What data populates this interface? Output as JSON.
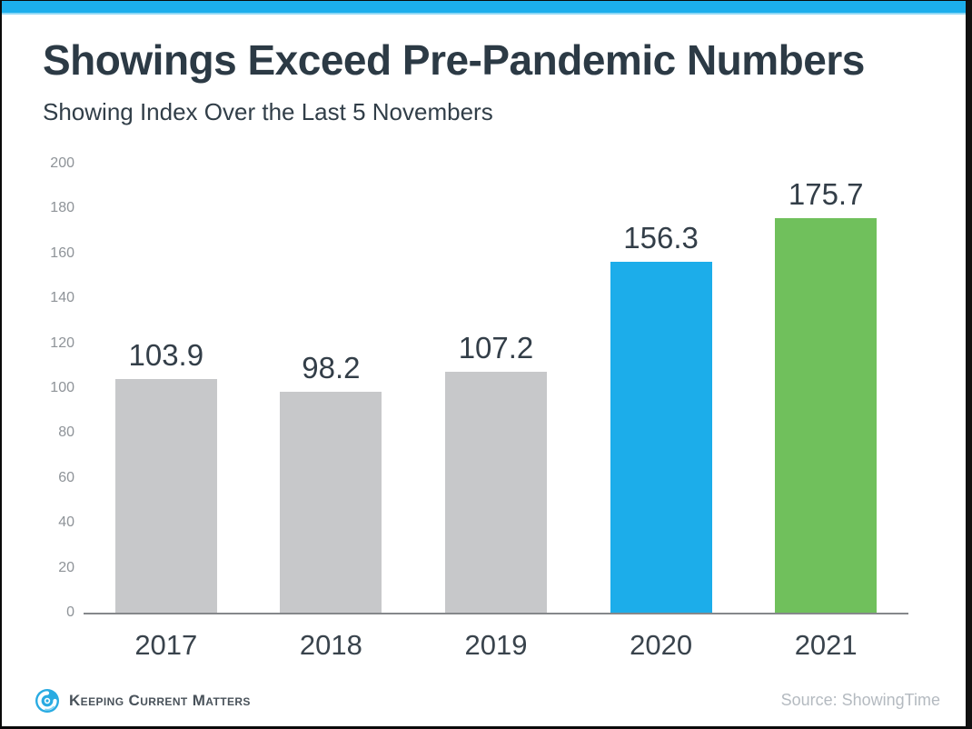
{
  "page": {
    "title": "Showings Exceed Pre-Pandemic Numbers",
    "subtitle": "Showing Index Over the Last 5 Novembers",
    "top_bar_color": "#1caeec"
  },
  "chart_data": {
    "type": "bar",
    "title": "Showings Exceed Pre-Pandemic Numbers",
    "subtitle": "Showing Index Over the Last 5 Novembers",
    "categories": [
      "2017",
      "2018",
      "2019",
      "2020",
      "2021"
    ],
    "values": [
      103.9,
      98.2,
      107.2,
      156.3,
      175.7
    ],
    "value_labels": [
      "103.9",
      "98.2",
      "107.2",
      "156.3",
      "175.7"
    ],
    "bar_colors": [
      "#c7c8ca",
      "#c7c8ca",
      "#c7c8ca",
      "#1cadea",
      "#70c05c"
    ],
    "xlabel": "",
    "ylabel": "",
    "ylim": [
      0,
      200
    ],
    "yticks": [
      0,
      20,
      40,
      60,
      80,
      100,
      120,
      140,
      160,
      180,
      200
    ],
    "grid": false,
    "legend": false,
    "axis_line_color": "#85888b",
    "tick_label_color": "#8e9398"
  },
  "footer": {
    "brand": "Keeping Current Matters",
    "logo_icon": "kcm-swirl-icon",
    "brand_color": "#29abe2",
    "source": "Source: ShowingTime"
  }
}
